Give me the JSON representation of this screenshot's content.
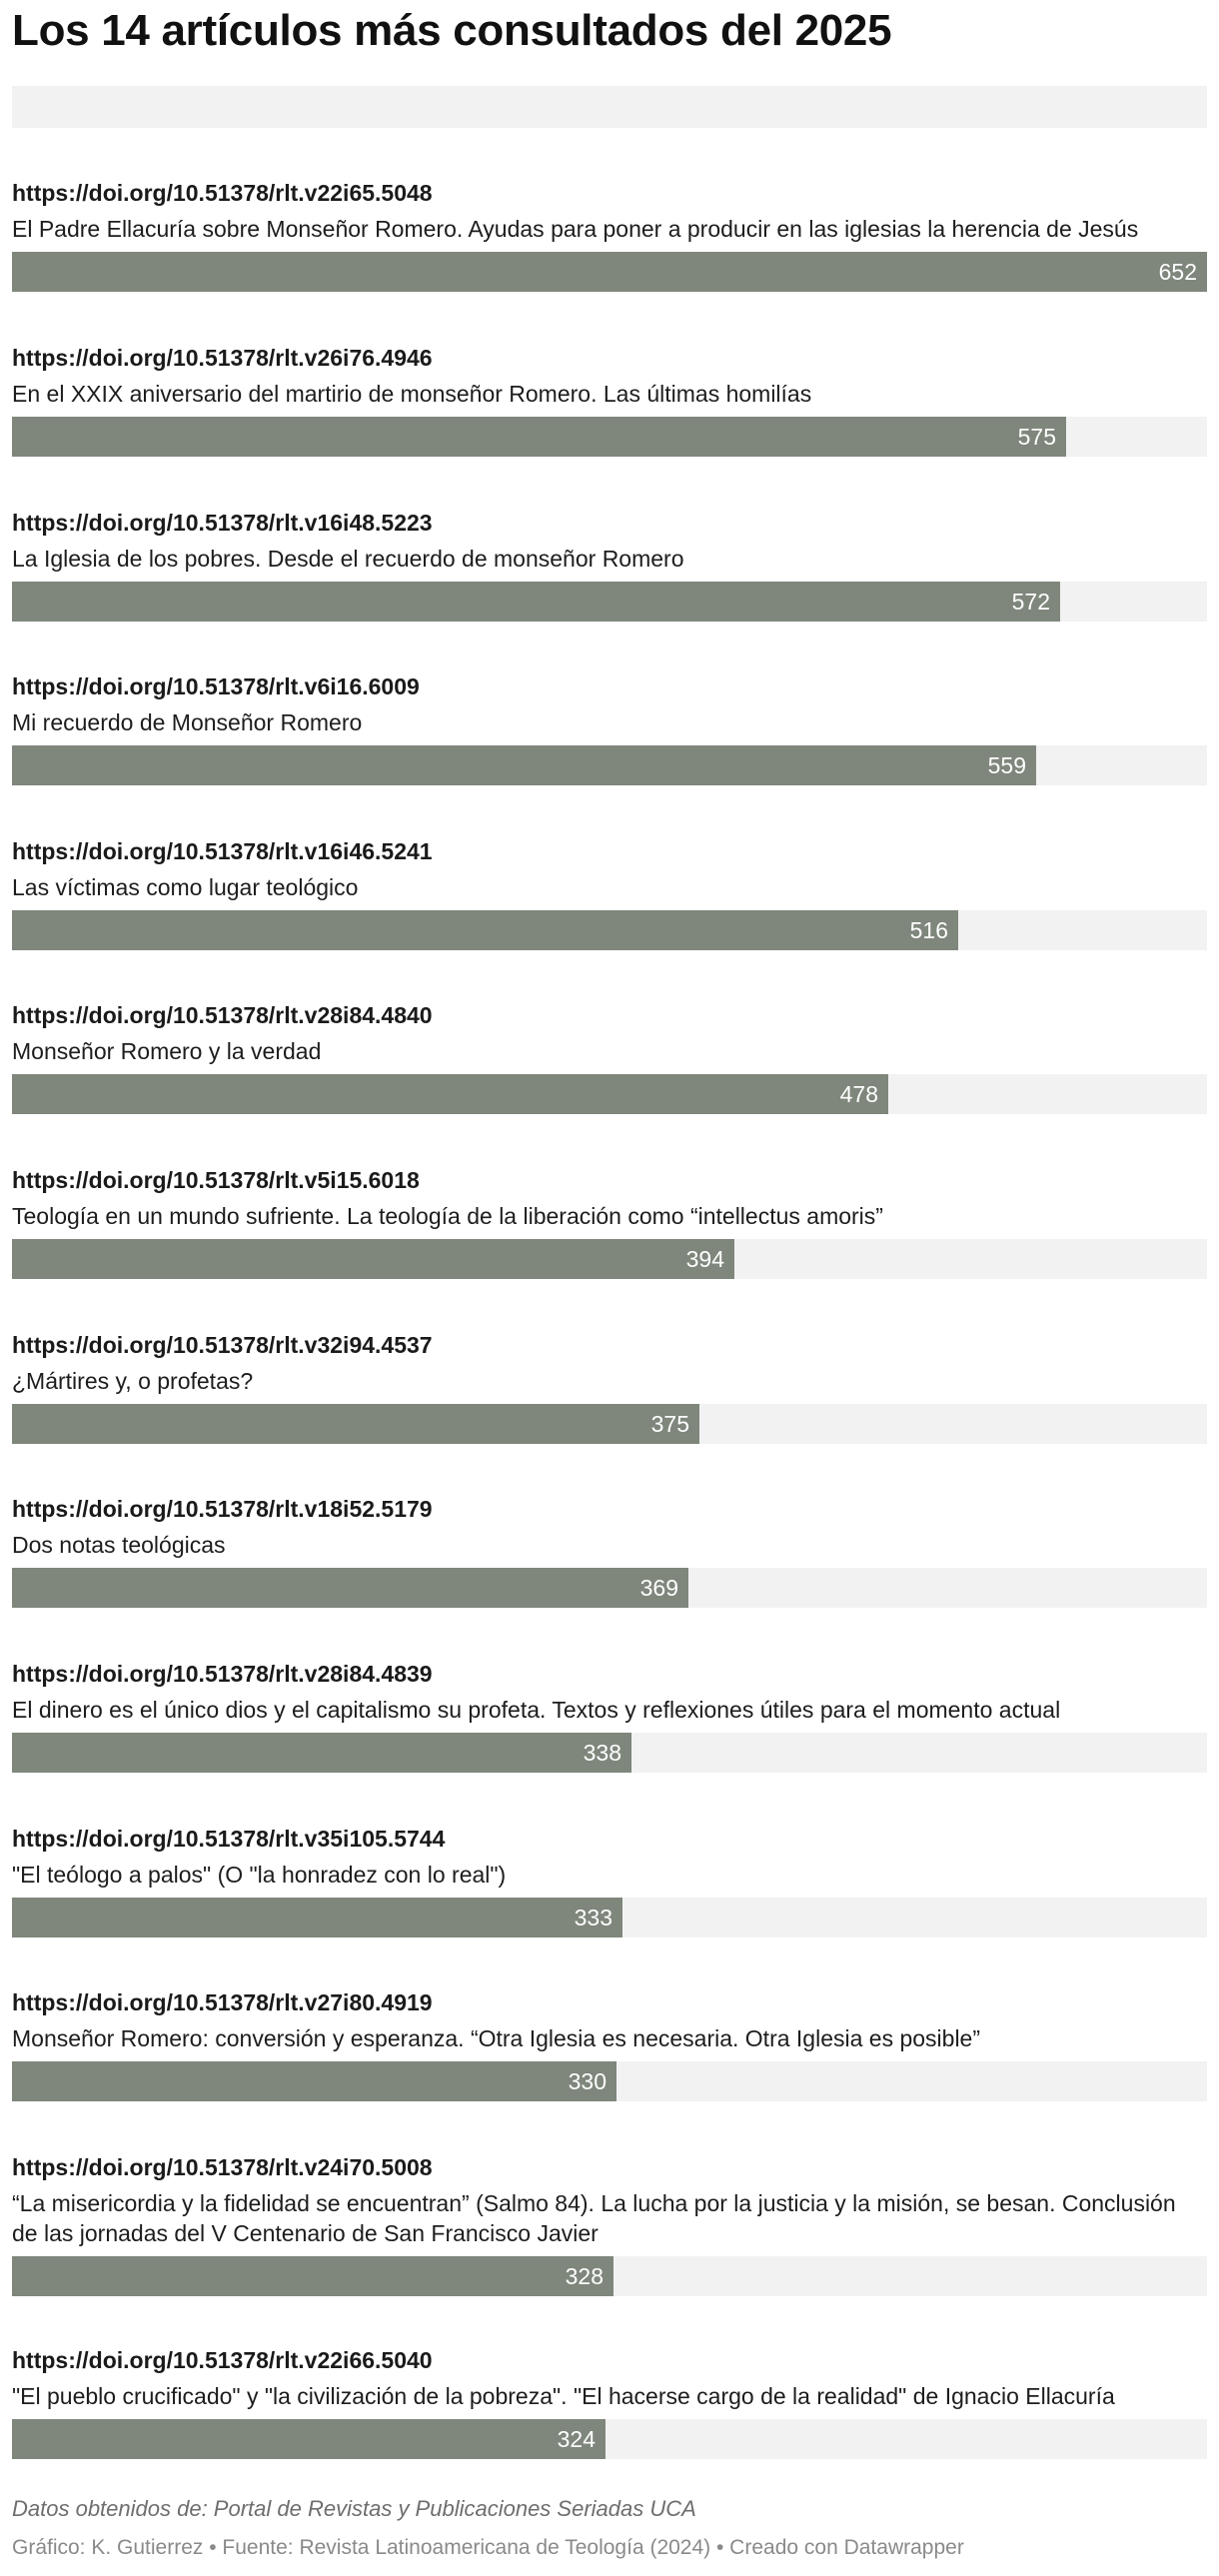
{
  "title": "Los 14 artículos más consultados del 2025",
  "notes": "Datos obtenidos de: Portal de Revistas y Publicaciones Seriadas UCA",
  "credits": "Gráfico: K. Gutierrez • Fuente: Revista Latinoamericana de Teología (2024) • Creado con Datawrapper",
  "colors": {
    "bar": "#7f877c",
    "track": "#f2f2f2"
  },
  "chart_data": {
    "type": "bar",
    "orientation": "horizontal",
    "title": "Los 14 artículos más consultados del 2025",
    "xlim": [
      0,
      652
    ],
    "categories": [
      "https://doi.org/10.51378/rlt.v22i65.5048",
      "https://doi.org/10.51378/rlt.v26i76.4946",
      "https://doi.org/10.51378/rlt.v16i48.5223",
      "https://doi.org/10.51378/rlt.v6i16.6009",
      "https://doi.org/10.51378/rlt.v16i46.5241",
      "https://doi.org/10.51378/rlt.v28i84.4840",
      "https://doi.org/10.51378/rlt.v5i15.6018",
      "https://doi.org/10.51378/rlt.v32i94.4537",
      "https://doi.org/10.51378/rlt.v18i52.5179",
      "https://doi.org/10.51378/rlt.v28i84.4839",
      "https://doi.org/10.51378/rlt.v35i105.5744",
      "https://doi.org/10.51378/rlt.v27i80.4919",
      "https://doi.org/10.51378/rlt.v24i70.5008",
      "https://doi.org/10.51378/rlt.v22i66.5040"
    ],
    "labels": [
      "El Padre Ellacuría sobre Monseñor Romero. Ayudas para poner a producir en las iglesias la herencia de Jesús",
      "En el XXIX aniversario del martirio de monseñor Romero. Las últimas homilías",
      "La Iglesia de los pobres. Desde el recuerdo de monseñor Romero",
      "Mi recuerdo de Monseñor Romero",
      "Las víctimas como lugar teológico",
      "Monseñor Romero y la verdad",
      "Teología en un mundo sufriente. La teología de la liberación como “intellectus amoris”",
      "¿Mártires y, o profetas?",
      "Dos notas teológicas",
      "El dinero es el único dios y el capitalismo su profeta. Textos y reflexiones útiles para el momento actual",
      "\"El teólogo a palos\" (O \"la honradez con lo real\")",
      "Monseñor Romero: conversión y esperanza. “Otra Iglesia es necesaria. Otra Iglesia es posible”",
      "“La misericordia y la fidelidad se encuentran” (Salmo 84). La lucha por la justicia y la misión, se besan. Conclusión de las jornadas del V Centenario de San Francisco Javier",
      "\"El pueblo crucificado\" y \"la civilización de la pobreza\". \"El hacerse cargo de la realidad\" de Ignacio Ellacuría"
    ],
    "values": [
      652,
      575,
      572,
      559,
      516,
      478,
      394,
      375,
      369,
      338,
      333,
      330,
      328,
      324
    ]
  }
}
